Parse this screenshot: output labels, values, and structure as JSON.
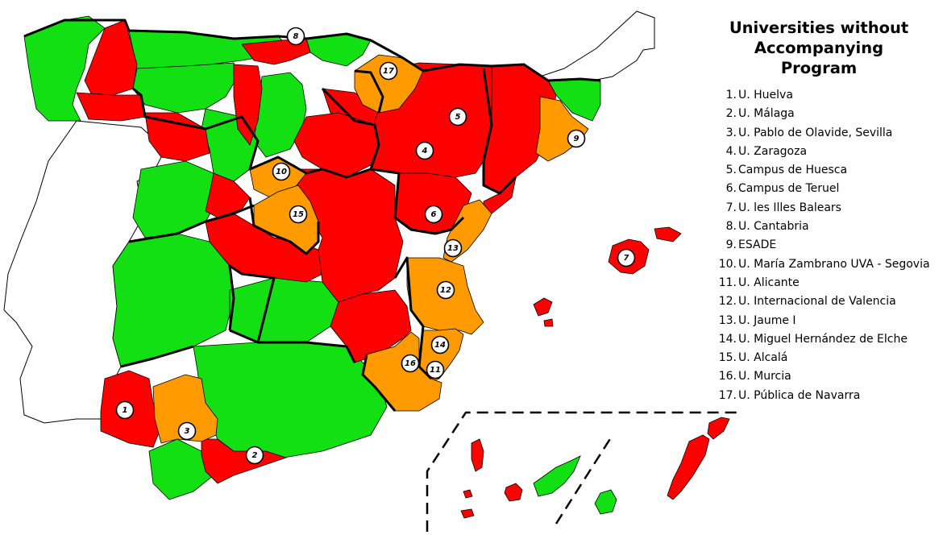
{
  "legend": {
    "title_line1": "Universities without",
    "title_line2": "Accompanying Program",
    "items": [
      {
        "number": "1.",
        "label": "U. Huelva"
      },
      {
        "number": "2.",
        "label": "U. Málaga"
      },
      {
        "number": "3.",
        "label": "U. Pablo de Olavide, Sevilla"
      },
      {
        "number": "4.",
        "label": "U. Zaragoza"
      },
      {
        "number": "5.",
        "label": "Campus de Huesca"
      },
      {
        "number": "6.",
        "label": "Campus de Teruel"
      },
      {
        "number": "7.",
        "label": "U. les Illes Balears"
      },
      {
        "number": "8.",
        "label": "U. Cantabria"
      },
      {
        "number": "9.",
        "label": "ESADE"
      },
      {
        "number": "10.",
        "label": "U. María Zambrano UVA - Segovia"
      },
      {
        "number": "11.",
        "label": "U. Alicante"
      },
      {
        "number": "12.",
        "label": "U. Internacional de Valencia"
      },
      {
        "number": "13.",
        "label": "U. Jaume I"
      },
      {
        "number": "14.",
        "label": "U. Miguel Hernández de Elche"
      },
      {
        "number": "15.",
        "label": "U. Alcalá"
      },
      {
        "number": "16.",
        "label": "U. Murcia"
      },
      {
        "number": "17.",
        "label": "U. Pública de Navarra"
      }
    ]
  },
  "map": {
    "colors": {
      "green": "#12e012",
      "red": "#ff0000",
      "orange": "#ff9a00",
      "border": "#000000"
    },
    "markers": [
      "1",
      "2",
      "3",
      "4",
      "5",
      "6",
      "7",
      "8",
      "9",
      "10",
      "11",
      "12",
      "13",
      "14",
      "15",
      "16",
      "17"
    ]
  }
}
